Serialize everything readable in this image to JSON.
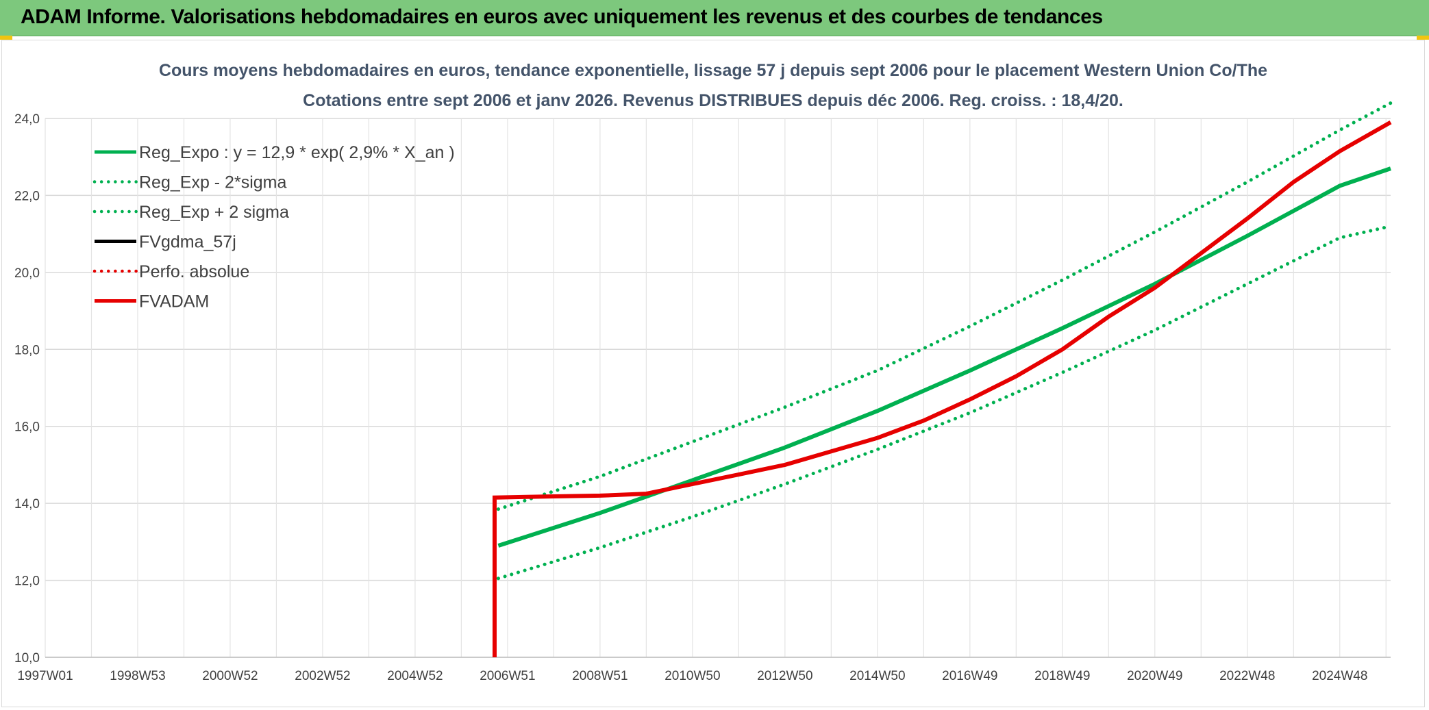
{
  "banner": {
    "title": "ADAM Informe. Valorisations hebdomadaires en euros avec uniquement les revenus et des courbes de tendances"
  },
  "colors": {
    "banner": "#7dc87d",
    "reg_green": "#00b050",
    "adam_red": "#e60000",
    "black": "#000000",
    "grid": "#d9d9d9"
  },
  "chart_data": {
    "type": "line",
    "title": "Cours moyens hebdomadaires en euros, tendance exponentielle, lissage 57 j depuis sept 2006 pour le placement Western Union Co/The",
    "subtitle": "Cotations entre sept 2006  et janv 2026. Revenus DISTRIBUES depuis déc 2006. Reg. croiss. : 18,4/20.",
    "xlabel": "",
    "ylabel": "",
    "x_ticks": [
      "1997W01",
      "1998W53",
      "2000W52",
      "2002W52",
      "2004W52",
      "2006W51",
      "2008W51",
      "2010W50",
      "2012W50",
      "2014W50",
      "2016W49",
      "2018W49",
      "2020W49",
      "2022W48",
      "2024W48"
    ],
    "ylim": [
      10,
      24
    ],
    "y_ticks": [
      "10,0",
      "12,0",
      "14,0",
      "16,0",
      "18,0",
      "20,0",
      "22,0",
      "24,0"
    ],
    "legend_position": "top-left",
    "grid": true,
    "series": [
      {
        "name": "Reg_Expo : y = 12,9 * exp( 2,9% *  X_an )",
        "style": "solid",
        "color": "#00b050",
        "x": [
          2006.8,
          2009,
          2011,
          2013,
          2015,
          2017,
          2019,
          2021,
          2023,
          2025,
          2026.1
        ],
        "y": [
          12.9,
          13.75,
          14.6,
          15.45,
          16.4,
          17.45,
          18.55,
          19.7,
          20.95,
          22.25,
          22.7
        ]
      },
      {
        "name": "Reg_Exp - 2*sigma",
        "style": "dotted",
        "color": "#00b050",
        "x": [
          2006.8,
          2009,
          2011,
          2013,
          2015,
          2017,
          2019,
          2021,
          2023,
          2025,
          2026.1
        ],
        "y": [
          12.05,
          12.85,
          13.65,
          14.5,
          15.4,
          16.35,
          17.4,
          18.5,
          19.7,
          20.9,
          21.2
        ]
      },
      {
        "name": "Reg_Exp + 2 sigma",
        "style": "dotted",
        "color": "#00b050",
        "x": [
          2006.8,
          2009,
          2011,
          2013,
          2015,
          2017,
          2019,
          2021,
          2023,
          2025,
          2026.1
        ],
        "y": [
          13.85,
          14.7,
          15.6,
          16.5,
          17.45,
          18.6,
          19.8,
          21.05,
          22.35,
          23.7,
          24.4
        ]
      },
      {
        "name": "FVgdma_57j",
        "style": "solid",
        "color": "#000000",
        "x": [],
        "y": []
      },
      {
        "name": "Perfo. absolue",
        "style": "dotted",
        "color": "#e60000",
        "x": [],
        "y": []
      },
      {
        "name": "FVADAM",
        "style": "solid",
        "color": "#e60000",
        "x": [
          2006.72,
          2006.72,
          2008,
          2009,
          2010,
          2011,
          2012,
          2013,
          2014,
          2015,
          2016,
          2017,
          2018,
          2019,
          2020,
          2021,
          2022,
          2023,
          2024,
          2025,
          2026.1
        ],
        "y": [
          10.0,
          14.15,
          14.18,
          14.2,
          14.25,
          14.5,
          14.75,
          15.0,
          15.35,
          15.7,
          16.15,
          16.7,
          17.3,
          18.0,
          18.85,
          19.6,
          20.5,
          21.4,
          22.35,
          23.15,
          23.9
        ]
      }
    ]
  }
}
